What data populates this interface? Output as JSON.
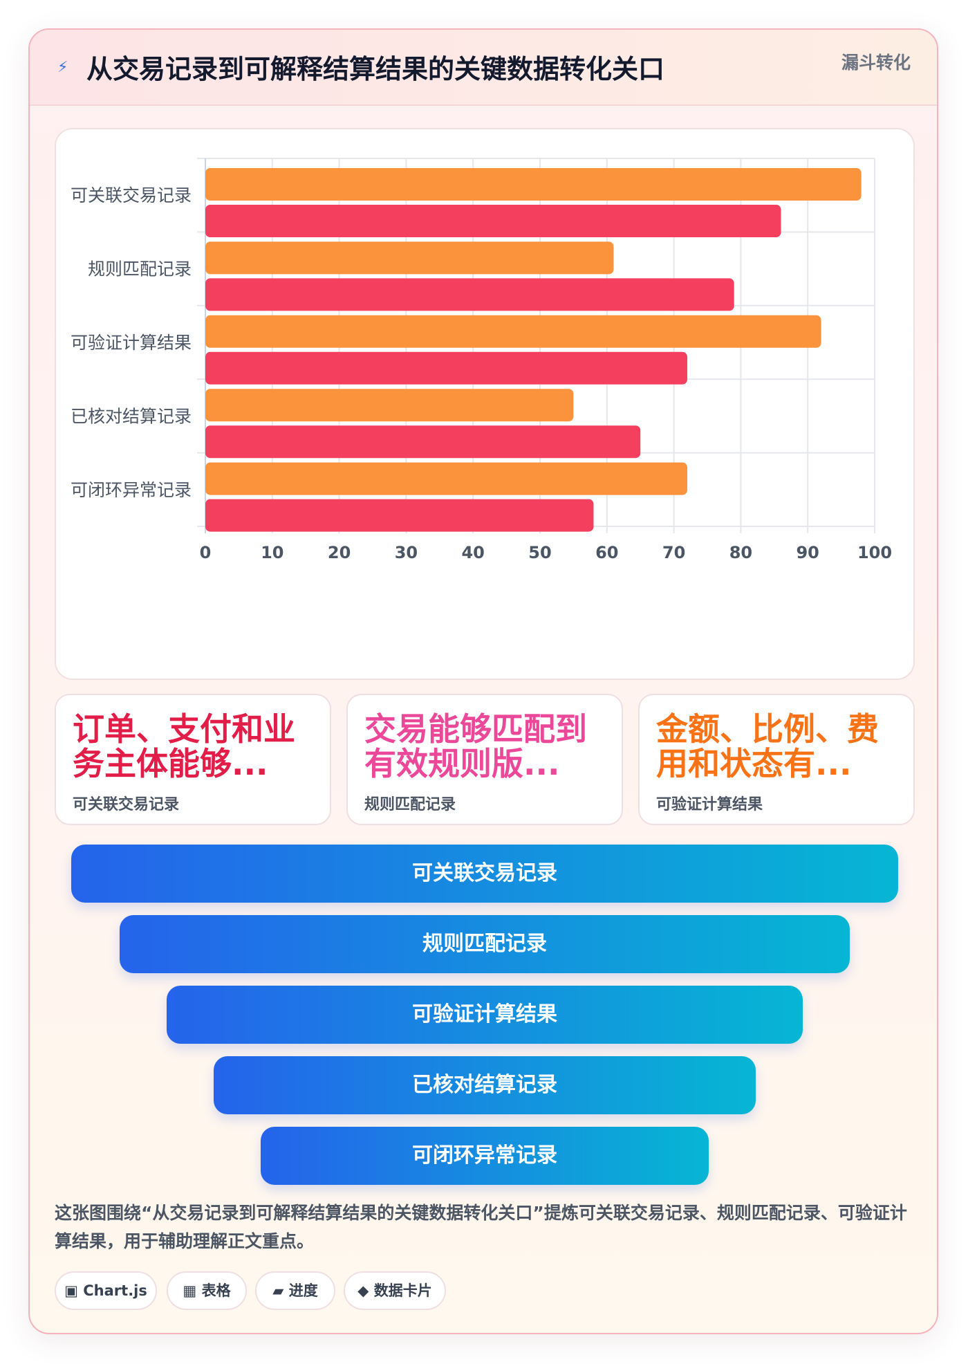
{
  "header": {
    "icon": "lightning-icon",
    "title": "从交易记录到可解释结算结果的关键数据转化关口",
    "tag": "漏斗转化"
  },
  "chart_data": {
    "type": "bar",
    "orientation": "horizontal",
    "categories": [
      "可关联交易记录",
      "规则匹配记录",
      "可验证计算结果",
      "已核对结算记录",
      "可闭环异常记录"
    ],
    "series": [
      {
        "color": "#fb923c",
        "values": [
          98,
          61,
          92,
          55,
          72
        ]
      },
      {
        "color": "#f43f5e",
        "values": [
          86,
          79,
          72,
          65,
          58
        ]
      }
    ],
    "xlim": [
      0,
      100
    ],
    "ticks": [
      0,
      10,
      20,
      30,
      40,
      50,
      60,
      70,
      80,
      90,
      100
    ],
    "grid": true,
    "legend": "none"
  },
  "stats": [
    {
      "value": "订单、支付和业务主体能够...",
      "label": "可关联交易记录",
      "color": "#e11d48"
    },
    {
      "value": "交易能够匹配到有效规则版...",
      "label": "规则匹配记录",
      "color": "#ec4899"
    },
    {
      "value": "金额、比例、费用和状态有...",
      "label": "可验证计算结果",
      "color": "#f97316"
    }
  ],
  "funnel": [
    {
      "label": "可关联交易记录"
    },
    {
      "label": "规则匹配记录"
    },
    {
      "label": "可验证计算结果"
    },
    {
      "label": "已核对结算记录"
    },
    {
      "label": "可闭环异常记录"
    }
  ],
  "caption": "这张图围绕“从交易记录到可解释结算结果的关键数据转化关口”提炼可关联交易记录、规则匹配记录、可验证计算结果，用于辅助理解正文重点。",
  "chips": [
    {
      "icon": "▣",
      "label": "Chart.js"
    },
    {
      "icon": "▦",
      "label": "表格"
    },
    {
      "icon": "▰",
      "label": "进度"
    },
    {
      "icon": "◆",
      "label": "数据卡片"
    }
  ]
}
